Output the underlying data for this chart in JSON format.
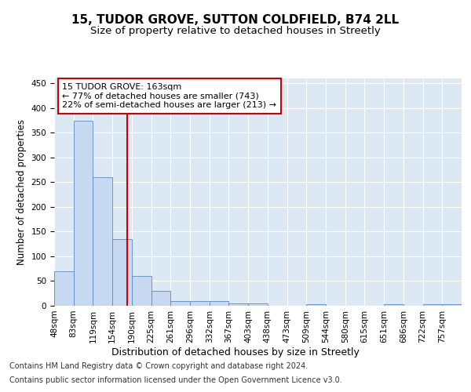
{
  "title_line1": "15, TUDOR GROVE, SUTTON COLDFIELD, B74 2LL",
  "title_line2": "Size of property relative to detached houses in Streetly",
  "xlabel": "Distribution of detached houses by size in Streetly",
  "ylabel": "Number of detached properties",
  "bin_labels": [
    "48sqm",
    "83sqm",
    "119sqm",
    "154sqm",
    "190sqm",
    "225sqm",
    "261sqm",
    "296sqm",
    "332sqm",
    "367sqm",
    "403sqm",
    "438sqm",
    "473sqm",
    "509sqm",
    "544sqm",
    "580sqm",
    "615sqm",
    "651sqm",
    "686sqm",
    "722sqm",
    "757sqm"
  ],
  "bar_values": [
    70,
    375,
    260,
    135,
    60,
    30,
    10,
    10,
    10,
    5,
    5,
    0,
    0,
    3,
    0,
    0,
    0,
    3,
    0,
    3,
    3
  ],
  "bar_color": "#c6d9f0",
  "bar_edge_color": "#5a8ac6",
  "vline_color": "#cc0000",
  "annotation_text": "15 TUDOR GROVE: 163sqm\n← 77% of detached houses are smaller (743)\n22% of semi-detached houses are larger (213) →",
  "annotation_box_color": "#ffffff",
  "annotation_box_edge": "#cc0000",
  "ylim": [
    0,
    460
  ],
  "yticks": [
    0,
    50,
    100,
    150,
    200,
    250,
    300,
    350,
    400,
    450
  ],
  "background_color": "#dce9f5",
  "footer_line1": "Contains HM Land Registry data © Crown copyright and database right 2024.",
  "footer_line2": "Contains public sector information licensed under the Open Government Licence v3.0.",
  "title_fontsize": 11,
  "subtitle_fontsize": 9.5,
  "xlabel_fontsize": 9,
  "ylabel_fontsize": 8.5,
  "tick_fontsize": 7.5,
  "footer_fontsize": 7,
  "annotation_fontsize": 8
}
